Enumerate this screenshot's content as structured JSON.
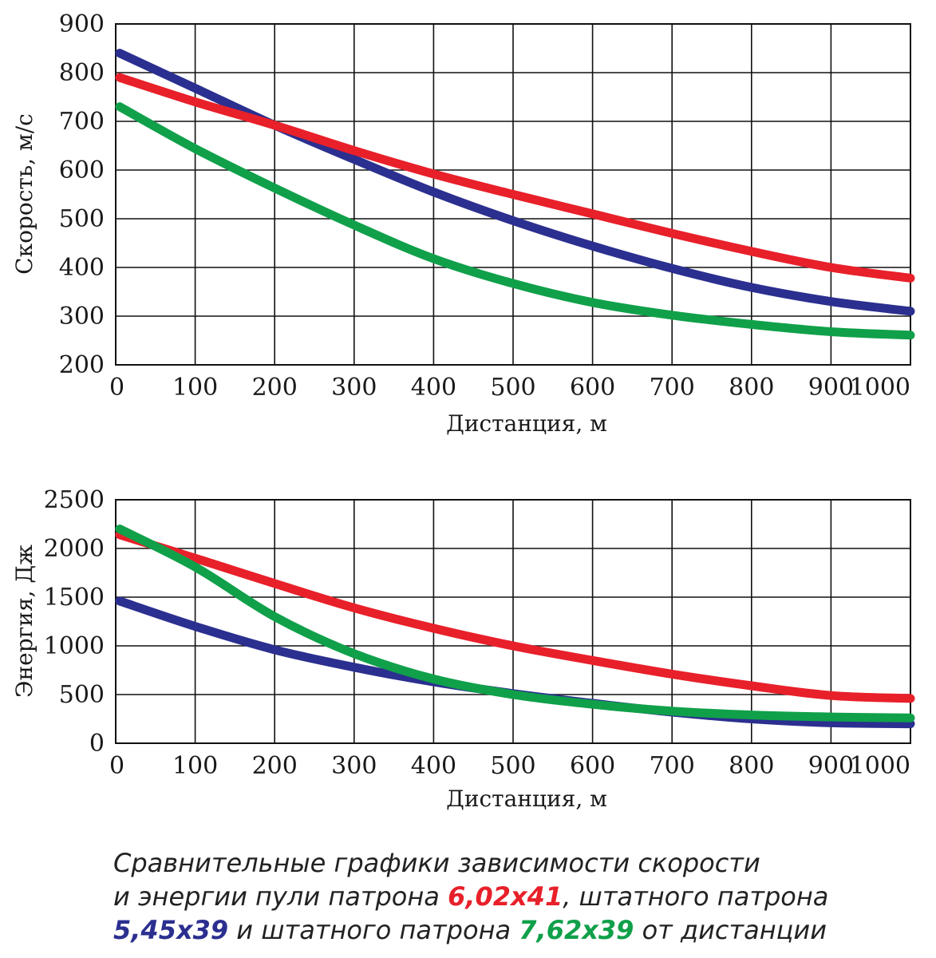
{
  "chart_data": [
    {
      "type": "line",
      "title": "",
      "xlabel": "Дистанция, м",
      "ylabel": "Скорость, м/с",
      "xlim": [
        0,
        1000
      ],
      "ylim": [
        200,
        900
      ],
      "x_ticks": [
        "0",
        "100",
        "200",
        "300",
        "400",
        "500",
        "600",
        "700",
        "800",
        "900",
        "1000"
      ],
      "y_ticks": [
        "200",
        "300",
        "400",
        "500",
        "600",
        "700",
        "800",
        "900"
      ],
      "grid": true,
      "x": [
        5,
        100,
        200,
        300,
        400,
        500,
        600,
        700,
        800,
        900,
        1000
      ],
      "series": [
        {
          "name": "5,45x39",
          "color": "#2b2f8f",
          "values": [
            840,
            768,
            692,
            622,
            555,
            496,
            444,
            398,
            359,
            330,
            310
          ]
        },
        {
          "name": "6,02x41",
          "color": "#e8202a",
          "values": [
            790,
            740,
            692,
            640,
            592,
            550,
            510,
            470,
            433,
            400,
            378
          ]
        },
        {
          "name": "7,62x39",
          "color": "#10a04a",
          "values": [
            730,
            644,
            563,
            487,
            418,
            367,
            328,
            302,
            283,
            268,
            261
          ]
        }
      ]
    },
    {
      "type": "line",
      "title": "",
      "xlabel": "Дистанция, м",
      "ylabel": "Энергия, Дж",
      "xlim": [
        0,
        1000
      ],
      "ylim": [
        0,
        2500
      ],
      "x_ticks": [
        "0",
        "100",
        "200",
        "300",
        "400",
        "500",
        "600",
        "700",
        "800",
        "900",
        "1000"
      ],
      "y_ticks": [
        "0",
        "500",
        "1000",
        "1500",
        "2000",
        "2500"
      ],
      "grid": true,
      "x": [
        5,
        100,
        200,
        300,
        400,
        500,
        600,
        700,
        800,
        900,
        1000
      ],
      "series": [
        {
          "name": "5,45x39",
          "color": "#2b2f8f",
          "values": [
            1460,
            1200,
            960,
            780,
            630,
            510,
            410,
            320,
            250,
            210,
            200
          ]
        },
        {
          "name": "6,02x41",
          "color": "#e8202a",
          "values": [
            2140,
            1900,
            1640,
            1390,
            1180,
            1000,
            850,
            710,
            590,
            490,
            460
          ]
        },
        {
          "name": "7,62x39",
          "color": "#10a04a",
          "values": [
            2200,
            1810,
            1300,
            920,
            660,
            500,
            400,
            330,
            290,
            270,
            260
          ]
        }
      ]
    }
  ],
  "caption": {
    "line1": "Сравнительные графики зависимости скорости",
    "line2_pre": "и энергии пули патрона ",
    "line2_hl": "6,02x41",
    "line2_post": ", штатного патрона",
    "line3_hl1": "5,45x39",
    "line3_mid": " и штатного патрона ",
    "line3_hl2": "7,62x39",
    "line3_post": " от дистанции",
    "colors": {
      "red": "#e8202a",
      "blue": "#2b2f8f",
      "green": "#10a04a"
    }
  }
}
